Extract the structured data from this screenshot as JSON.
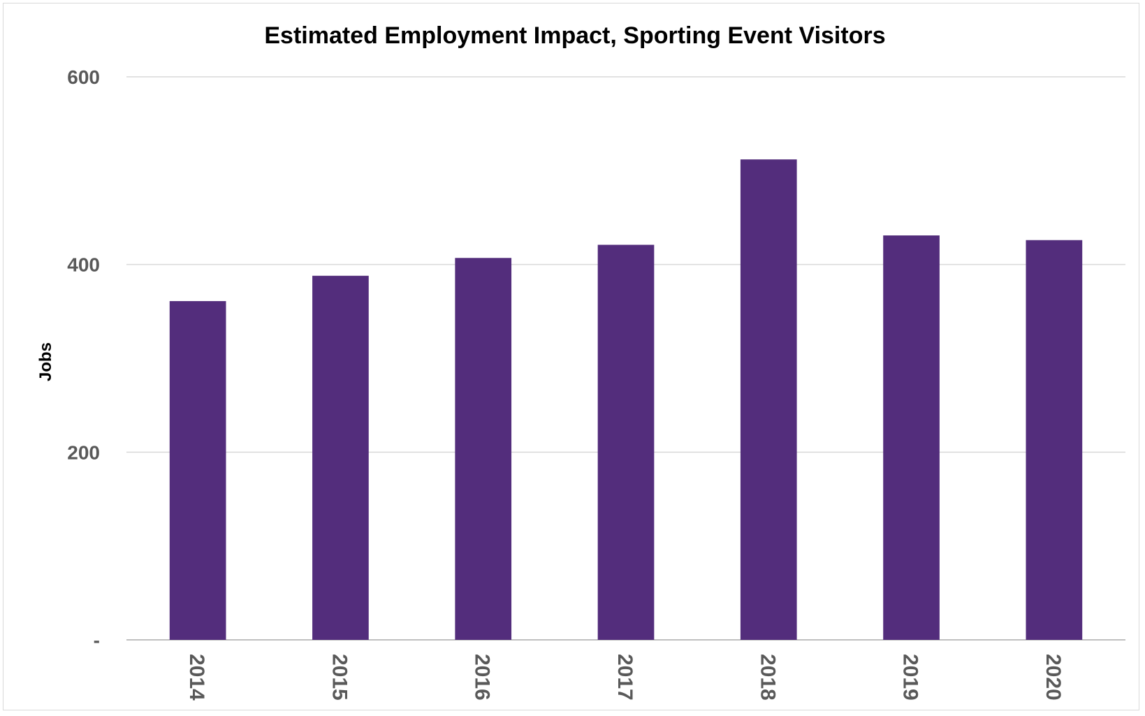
{
  "chart_data": {
    "type": "bar",
    "title": "Estimated Employment Impact, Sporting Event Visitors",
    "xlabel": "",
    "ylabel": "Jobs",
    "categories": [
      "2014",
      "2015",
      "2016",
      "2017",
      "2018",
      "2019",
      "2020"
    ],
    "series": [
      {
        "values": [
          361,
          388,
          407,
          421,
          512,
          431,
          426
        ],
        "color": "#532d7c"
      }
    ],
    "ylim": [
      0,
      600
    ],
    "yticks": [
      0,
      200,
      400,
      600
    ],
    "ytick_labels": [
      "-",
      "200",
      "400",
      "600"
    ],
    "grid": true,
    "gridline_color": "#d9d9d9",
    "legend": "none",
    "x_tick_rotation": "vertical"
  }
}
